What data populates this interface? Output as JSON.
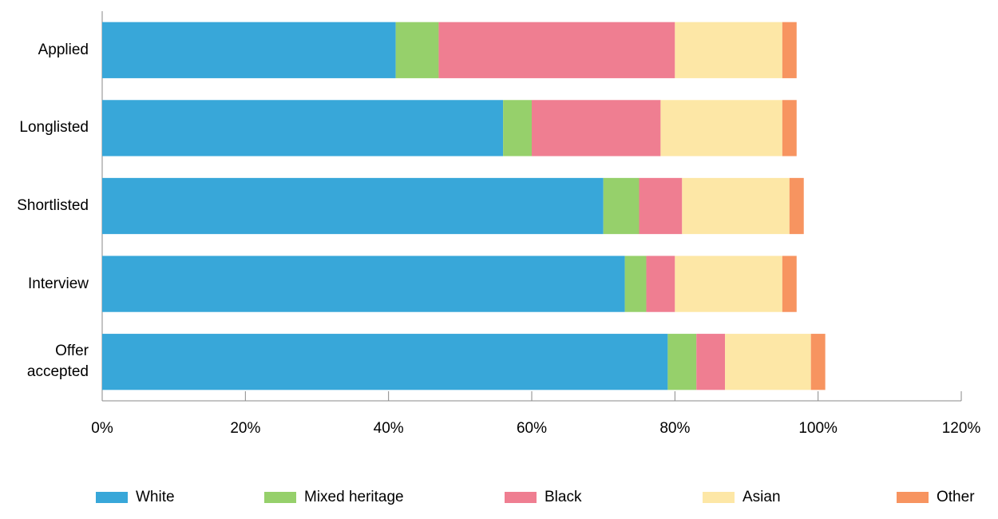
{
  "chart_data": {
    "type": "bar",
    "orientation": "horizontal",
    "stacked": true,
    "categories": [
      "Applied",
      "Longlisted",
      "Shortlisted",
      "Interview",
      "Offer accepted"
    ],
    "series": [
      {
        "name": "White",
        "color": "#38a7d9",
        "values": [
          41,
          56,
          70,
          73,
          79
        ]
      },
      {
        "name": "Mixed heritage",
        "color": "#96d06b",
        "values": [
          6,
          4,
          5,
          3,
          4
        ]
      },
      {
        "name": "Black",
        "color": "#ef7e91",
        "values": [
          33,
          18,
          6,
          4,
          4
        ]
      },
      {
        "name": "Asian",
        "color": "#fde7a6",
        "values": [
          15,
          17,
          15,
          15,
          12
        ]
      },
      {
        "name": "Other",
        "color": "#f79460",
        "values": [
          2,
          2,
          2,
          2,
          2
        ]
      }
    ],
    "xlim": [
      0,
      120
    ],
    "xticks": [
      {
        "value": 0,
        "label": "0%"
      },
      {
        "value": 20,
        "label": "20%"
      },
      {
        "value": 40,
        "label": "40%"
      },
      {
        "value": 60,
        "label": "60%"
      },
      {
        "value": 80,
        "label": "80%"
      },
      {
        "value": 100,
        "label": "100%"
      },
      {
        "value": 120,
        "label": "120%"
      }
    ],
    "grid": false,
    "legend": "bottom"
  }
}
